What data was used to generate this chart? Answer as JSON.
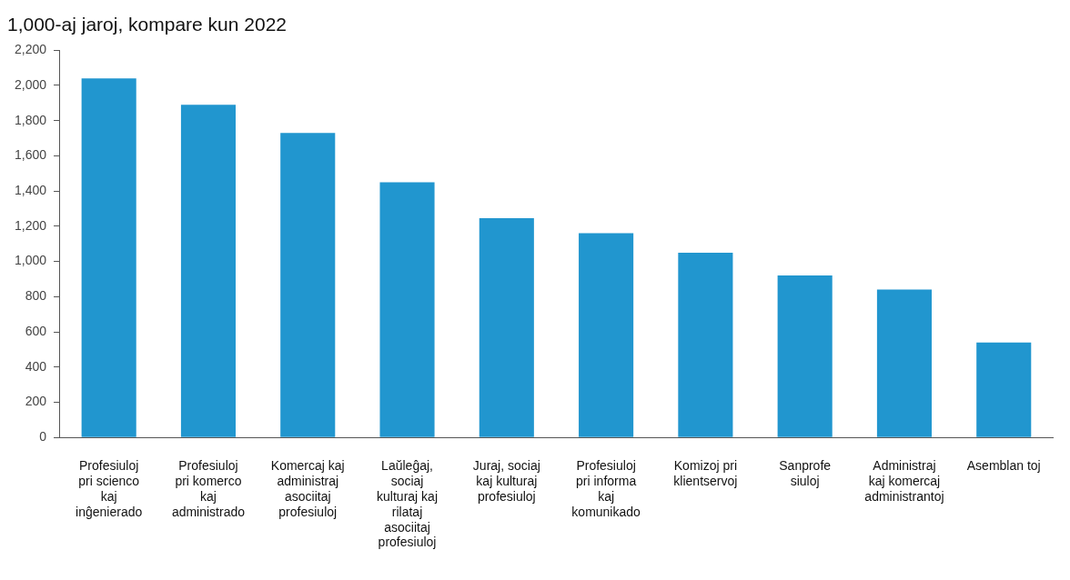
{
  "chart_data": {
    "type": "bar",
    "title": "1,000-aj jaroj, kompare kun 2022",
    "categories": [
      "Profesiuloj pri scienco kaj inĝenierado",
      "Profesiuloj pri komerco kaj administrado",
      "Komercaj kaj administraj asociitaj profesiuloj",
      "Laŭleĝaj, sociaj kulturaj kaj rilataj asociitaj profesiuloj",
      "Juraj, sociaj kaj kulturaj profesiuloj",
      "Profesiuloj pri informa kaj komunikado",
      "Komizoj pri klientservoj",
      "Sanprofe siuloj",
      "Administraj kaj komercaj administrantoj",
      "Asemblan toj"
    ],
    "values": [
      2040,
      1890,
      1730,
      1450,
      1245,
      1160,
      1050,
      920,
      840,
      540
    ],
    "color": "#2196cf",
    "ylim": [
      0,
      2200
    ],
    "yticks": [
      0,
      200,
      400,
      600,
      800,
      {
        "value": 1000,
        "label": "1,000"
      },
      {
        "value": 1200,
        "label": "1,200"
      },
      {
        "value": 1400,
        "label": "1,400"
      },
      {
        "value": 1600,
        "label": "1,600"
      },
      {
        "value": 1800,
        "label": "1,800"
      },
      {
        "value": 2000,
        "label": "2,000"
      },
      {
        "value": 2200,
        "label": "2,200"
      }
    ],
    "grid": false
  }
}
